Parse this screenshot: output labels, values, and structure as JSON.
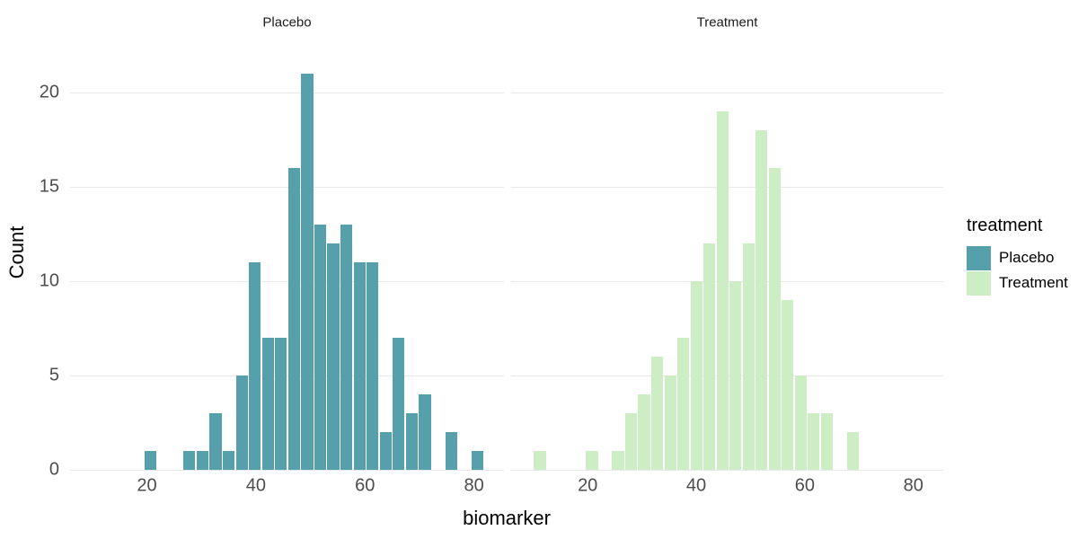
{
  "chart_data": {
    "type": "bar",
    "kind": "faceted_histogram",
    "x_label": "biomarker",
    "y_label": "Count",
    "x_ticks": [
      20,
      40,
      60,
      80
    ],
    "y_ticks": [
      0,
      5,
      10,
      15,
      20
    ],
    "x_domain": [
      5.9,
      85.5
    ],
    "y_max": 21,
    "bin_width": 2.4,
    "grid": "horizontal-only",
    "legend_position": "right",
    "facets": [
      {
        "label": "Placebo",
        "color": "#56A0AC",
        "bin_start": 19.4,
        "counts": [
          1,
          0,
          0,
          1,
          1,
          3,
          1,
          5,
          11,
          7,
          7,
          16,
          21,
          13,
          12,
          13,
          11,
          11,
          2,
          7,
          3,
          4,
          0,
          2,
          0,
          1
        ]
      },
      {
        "label": "Treatment",
        "color": "#CDEDC5",
        "bin_start": 10.0,
        "counts": [
          1,
          0,
          0,
          0,
          1,
          0,
          1,
          3,
          4,
          6,
          5,
          7,
          10,
          12,
          19,
          10,
          12,
          18,
          16,
          9,
          5,
          3,
          3,
          0,
          2
        ]
      }
    ]
  },
  "axes": {
    "x_label": "biomarker",
    "y_label": "Count"
  },
  "legend": {
    "title": "treatment",
    "items": [
      {
        "label": "Placebo",
        "color": "#56A0AC"
      },
      {
        "label": "Treatment",
        "color": "#CDEDC5"
      }
    ]
  },
  "style": {
    "background": "#FFFFFF",
    "grid_color": "#E8E8E8",
    "tick_label_color": "#4D4D4D",
    "strip_text_color": "#1A1A1A",
    "title_color": "#000000",
    "bar_gap_color": "#FFFFFF"
  }
}
